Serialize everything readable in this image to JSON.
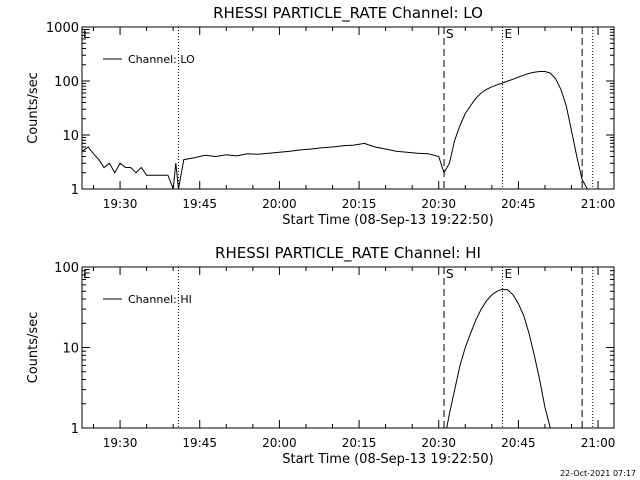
{
  "footer": {
    "timestamp": "22-Oct-2021 07:17"
  },
  "chart_data": [
    {
      "type": "line",
      "title": "RHESSI PARTICLE_RATE Channel: LO",
      "xlabel": "Start Time (08-Sep-13 19:22:50)",
      "ylabel": "Counts/sec",
      "yscale": "log",
      "ylim": [
        1,
        1000
      ],
      "xlim": [
        "19:22:50",
        "21:03:00"
      ],
      "x_ticks": [
        "19:30",
        "19:45",
        "20:00",
        "20:15",
        "20:30",
        "20:45",
        "21:00"
      ],
      "y_ticks": [
        "1",
        "10",
        "100",
        "1000"
      ],
      "legend": {
        "position": "top-left",
        "label": "Channel: LO"
      },
      "markers": [
        {
          "label": "",
          "time": "19:41",
          "style": "dotted"
        },
        {
          "label": "S",
          "time": "20:31",
          "style": "dashed"
        },
        {
          "label": "E",
          "time": "20:42",
          "style": "dotted"
        },
        {
          "label": "",
          "time": "20:57",
          "style": "dashed"
        },
        {
          "label": "",
          "time": "20:59",
          "style": "dotted"
        }
      ],
      "corner_label": "E",
      "series": [
        {
          "name": "Channel: LO",
          "color": "#000000",
          "points": [
            [
              "19:22:50",
              5
            ],
            [
              "19:24",
              6
            ],
            [
              "19:25",
              4.5
            ],
            [
              "19:26",
              3.5
            ],
            [
              "19:27",
              2.5
            ],
            [
              "19:28",
              3
            ],
            [
              "19:29",
              2
            ],
            [
              "19:30",
              3
            ],
            [
              "19:31",
              2.5
            ],
            [
              "19:32",
              2.5
            ],
            [
              "19:33",
              2
            ],
            [
              "19:34",
              2.5
            ],
            [
              "19:35",
              1.8
            ],
            [
              "19:36",
              1.8
            ],
            [
              "19:37",
              1.8
            ],
            [
              "19:38",
              1.8
            ],
            [
              "19:39",
              1.8
            ],
            [
              "19:40",
              1
            ],
            [
              "19:40:30",
              3
            ],
            [
              "19:41",
              1
            ],
            [
              "19:42",
              3.5
            ],
            [
              "19:44",
              3.8
            ],
            [
              "19:46",
              4.2
            ],
            [
              "19:48",
              4
            ],
            [
              "19:50",
              4.3
            ],
            [
              "19:52",
              4.1
            ],
            [
              "19:54",
              4.5
            ],
            [
              "19:56",
              4.4
            ],
            [
              "19:58",
              4.6
            ],
            [
              "20:00",
              4.8
            ],
            [
              "20:02",
              5
            ],
            [
              "20:04",
              5.3
            ],
            [
              "20:06",
              5.5
            ],
            [
              "20:08",
              5.8
            ],
            [
              "20:10",
              6
            ],
            [
              "20:12",
              6.3
            ],
            [
              "20:14",
              6.5
            ],
            [
              "20:16",
              7
            ],
            [
              "20:18",
              6
            ],
            [
              "20:20",
              5.5
            ],
            [
              "20:22",
              5
            ],
            [
              "20:24",
              4.8
            ],
            [
              "20:26",
              4.6
            ],
            [
              "20:28",
              4.5
            ],
            [
              "20:30",
              4
            ],
            [
              "20:31",
              2
            ],
            [
              "20:32",
              3
            ],
            [
              "20:33",
              8
            ],
            [
              "20:34",
              15
            ],
            [
              "20:35",
              25
            ],
            [
              "20:36",
              35
            ],
            [
              "20:37",
              48
            ],
            [
              "20:38",
              60
            ],
            [
              "20:39",
              70
            ],
            [
              "20:40",
              78
            ],
            [
              "20:41",
              85
            ],
            [
              "20:42",
              92
            ],
            [
              "20:43",
              100
            ],
            [
              "20:44",
              108
            ],
            [
              "20:45",
              118
            ],
            [
              "20:46",
              128
            ],
            [
              "20:47",
              138
            ],
            [
              "20:48",
              145
            ],
            [
              "20:49",
              150
            ],
            [
              "20:50",
              150
            ],
            [
              "20:51",
              140
            ],
            [
              "20:52",
              110
            ],
            [
              "20:53",
              70
            ],
            [
              "20:54",
              35
            ],
            [
              "20:55",
              12
            ],
            [
              "20:56",
              4
            ],
            [
              "20:57",
              1.5
            ],
            [
              "20:58",
              1
            ]
          ]
        }
      ]
    },
    {
      "type": "line",
      "title": "RHESSI PARTICLE_RATE Channel: HI",
      "xlabel": "Start Time (08-Sep-13 19:22:50)",
      "ylabel": "Counts/sec",
      "yscale": "log",
      "ylim": [
        1,
        100
      ],
      "xlim": [
        "19:22:50",
        "21:03:00"
      ],
      "x_ticks": [
        "19:30",
        "19:45",
        "20:00",
        "20:15",
        "20:30",
        "20:45",
        "21:00"
      ],
      "y_ticks": [
        "1",
        "10",
        "100"
      ],
      "legend": {
        "position": "top-left",
        "label": "Channel: HI"
      },
      "markers": [
        {
          "label": "",
          "time": "19:41",
          "style": "dotted"
        },
        {
          "label": "S",
          "time": "20:31",
          "style": "dashed"
        },
        {
          "label": "E",
          "time": "20:42",
          "style": "dotted"
        },
        {
          "label": "",
          "time": "20:57",
          "style": "dashed"
        },
        {
          "label": "",
          "time": "20:59",
          "style": "dotted"
        }
      ],
      "corner_label": "E",
      "series": [
        {
          "name": "Channel: HI",
          "color": "#000000",
          "points": [
            [
              "20:31:30",
              1
            ],
            [
              "20:32",
              1.5
            ],
            [
              "20:33",
              3
            ],
            [
              "20:34",
              6
            ],
            [
              "20:35",
              10
            ],
            [
              "20:36",
              15
            ],
            [
              "20:37",
              22
            ],
            [
              "20:38",
              30
            ],
            [
              "20:39",
              38
            ],
            [
              "20:40",
              45
            ],
            [
              "20:41",
              50
            ],
            [
              "20:42",
              53
            ],
            [
              "20:43",
              52
            ],
            [
              "20:44",
              45
            ],
            [
              "20:45",
              35
            ],
            [
              "20:46",
              25
            ],
            [
              "20:47",
              15
            ],
            [
              "20:48",
              8
            ],
            [
              "20:49",
              4
            ],
            [
              "20:50",
              1.8
            ],
            [
              "20:51",
              1
            ]
          ]
        }
      ]
    }
  ]
}
